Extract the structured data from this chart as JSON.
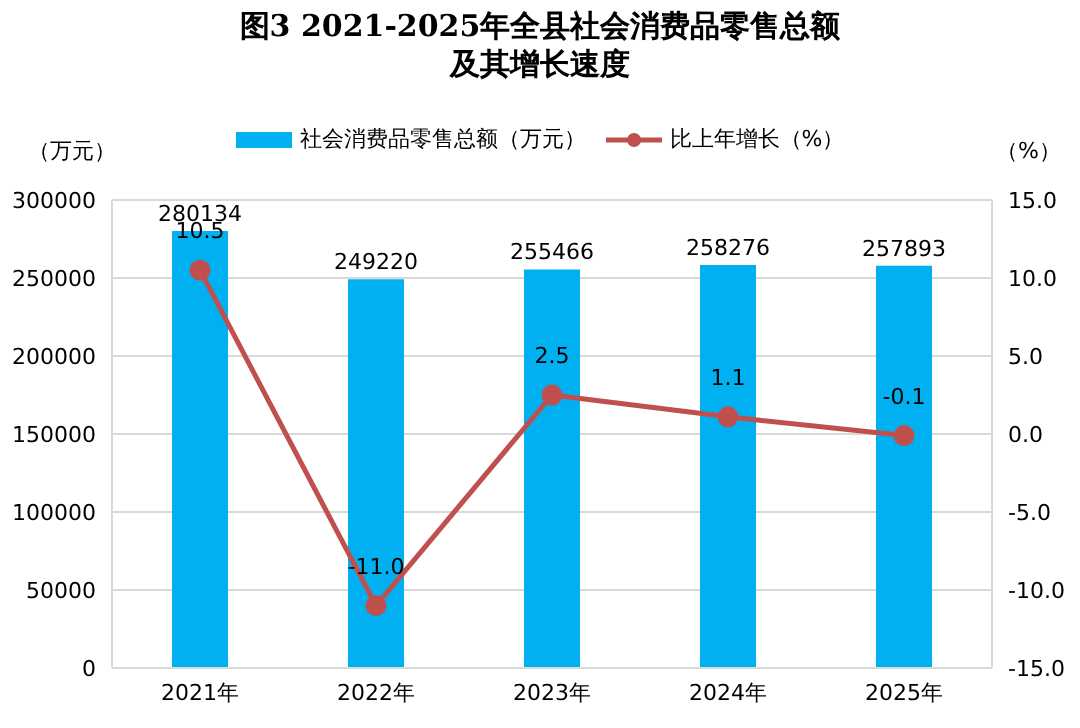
{
  "chart_data": {
    "type": "bar",
    "title": "图3 2021-2025年全县社会消费品零售总额及其增长速度",
    "ylabel": "（万元）",
    "y2label": "（%）",
    "categories": [
      "2021年",
      "2022年",
      "2023年",
      "2024年",
      "2025年"
    ],
    "series": [
      {
        "name": "社会消费品零售总额（万元）",
        "color": "#00b0f0",
        "values": [
          280134,
          249220,
          255466,
          258276,
          257893
        ],
        "value_labels": [
          "280134",
          "249220",
          "255466",
          "258276",
          "257893"
        ]
      },
      {
        "name": "比上年增长（%）",
        "type": "line",
        "axis": "y2",
        "color": "#c0504d",
        "marker": "circle",
        "values": [
          10.5,
          -11.0,
          2.5,
          1.1,
          -0.1
        ],
        "value_labels": [
          "10.5",
          "-11.0",
          "2.5",
          "1.1",
          "-0.1"
        ]
      }
    ],
    "ylim": [
      0,
      300000
    ],
    "yticks": [
      0,
      50000,
      100000,
      150000,
      200000,
      250000,
      300000
    ],
    "y2lim": [
      -15,
      15
    ],
    "y2ticks": [
      {
        "value": -15,
        "label": "-15.0"
      },
      {
        "value": -10,
        "label": "-10.0"
      },
      {
        "value": -5,
        "label": "-5.0"
      },
      {
        "value": 0,
        "label": "0.0"
      },
      {
        "value": 5,
        "label": "5.0"
      },
      {
        "value": 10,
        "label": "10.0"
      },
      {
        "value": 15,
        "label": "15.0"
      }
    ],
    "grid": "y",
    "legend": "top"
  }
}
